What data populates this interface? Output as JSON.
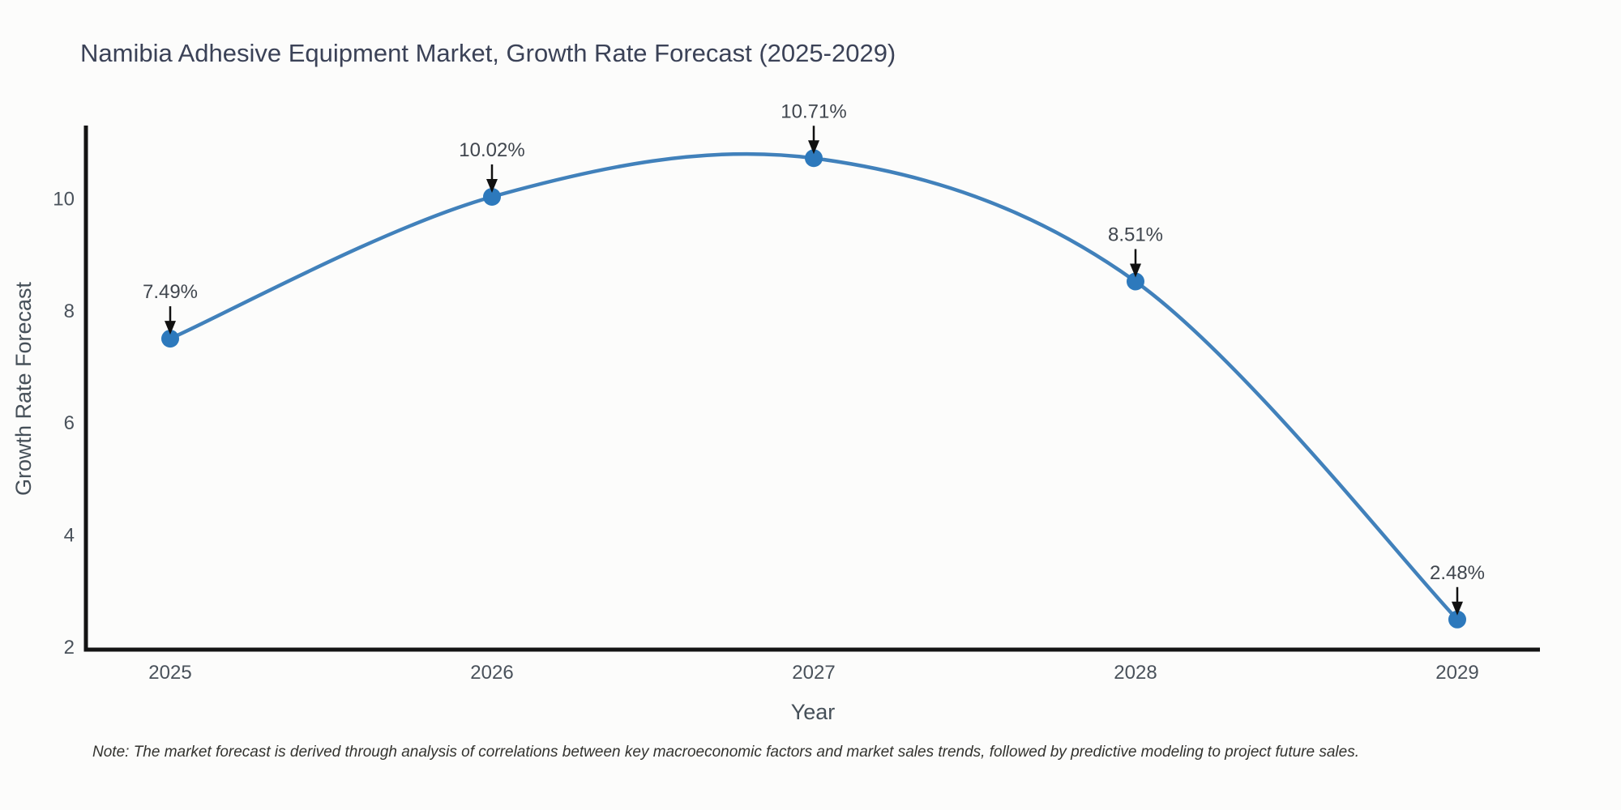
{
  "chart": {
    "title": "Namibia Adhesive Equipment Market, Growth Rate Forecast (2025-2029)",
    "x_axis_title": "Year",
    "y_axis_title": "Growth Rate Forecast",
    "note": "Note: The market forecast is derived through analysis of correlations between key macroeconomic factors and market sales trends, followed by predictive modeling to project future sales."
  },
  "chart_data": {
    "type": "line",
    "title": "Namibia Adhesive Equipment Market, Growth Rate Forecast (2025-2029)",
    "xlabel": "Year",
    "ylabel": "Growth Rate Forecast",
    "x": [
      2025,
      2026,
      2027,
      2028,
      2029
    ],
    "values": [
      7.49,
      10.02,
      10.71,
      8.51,
      2.48
    ],
    "point_labels": [
      "7.49%",
      "10.02%",
      "10.71%",
      "8.51%",
      "2.48%"
    ],
    "xticks": [
      "2025",
      "2026",
      "2027",
      "2028",
      "2029"
    ],
    "yticks": [
      2,
      4,
      6,
      8,
      10
    ],
    "ylim": [
      2,
      11.3
    ],
    "grid": false,
    "legend": "none",
    "smooth_spline": true,
    "annotation_style": "value label with downward black arrow above each marker",
    "colors": {
      "line": "#4181bb",
      "marker": "#2d79bc",
      "axis_spine": "#141414",
      "annotation_arrow": "#111111",
      "title_text": "#3b4257",
      "tick_text": "#4a525b",
      "axis_title_text": "#465059",
      "note_text": "#33332f",
      "background": "#fcfcfb"
    }
  }
}
